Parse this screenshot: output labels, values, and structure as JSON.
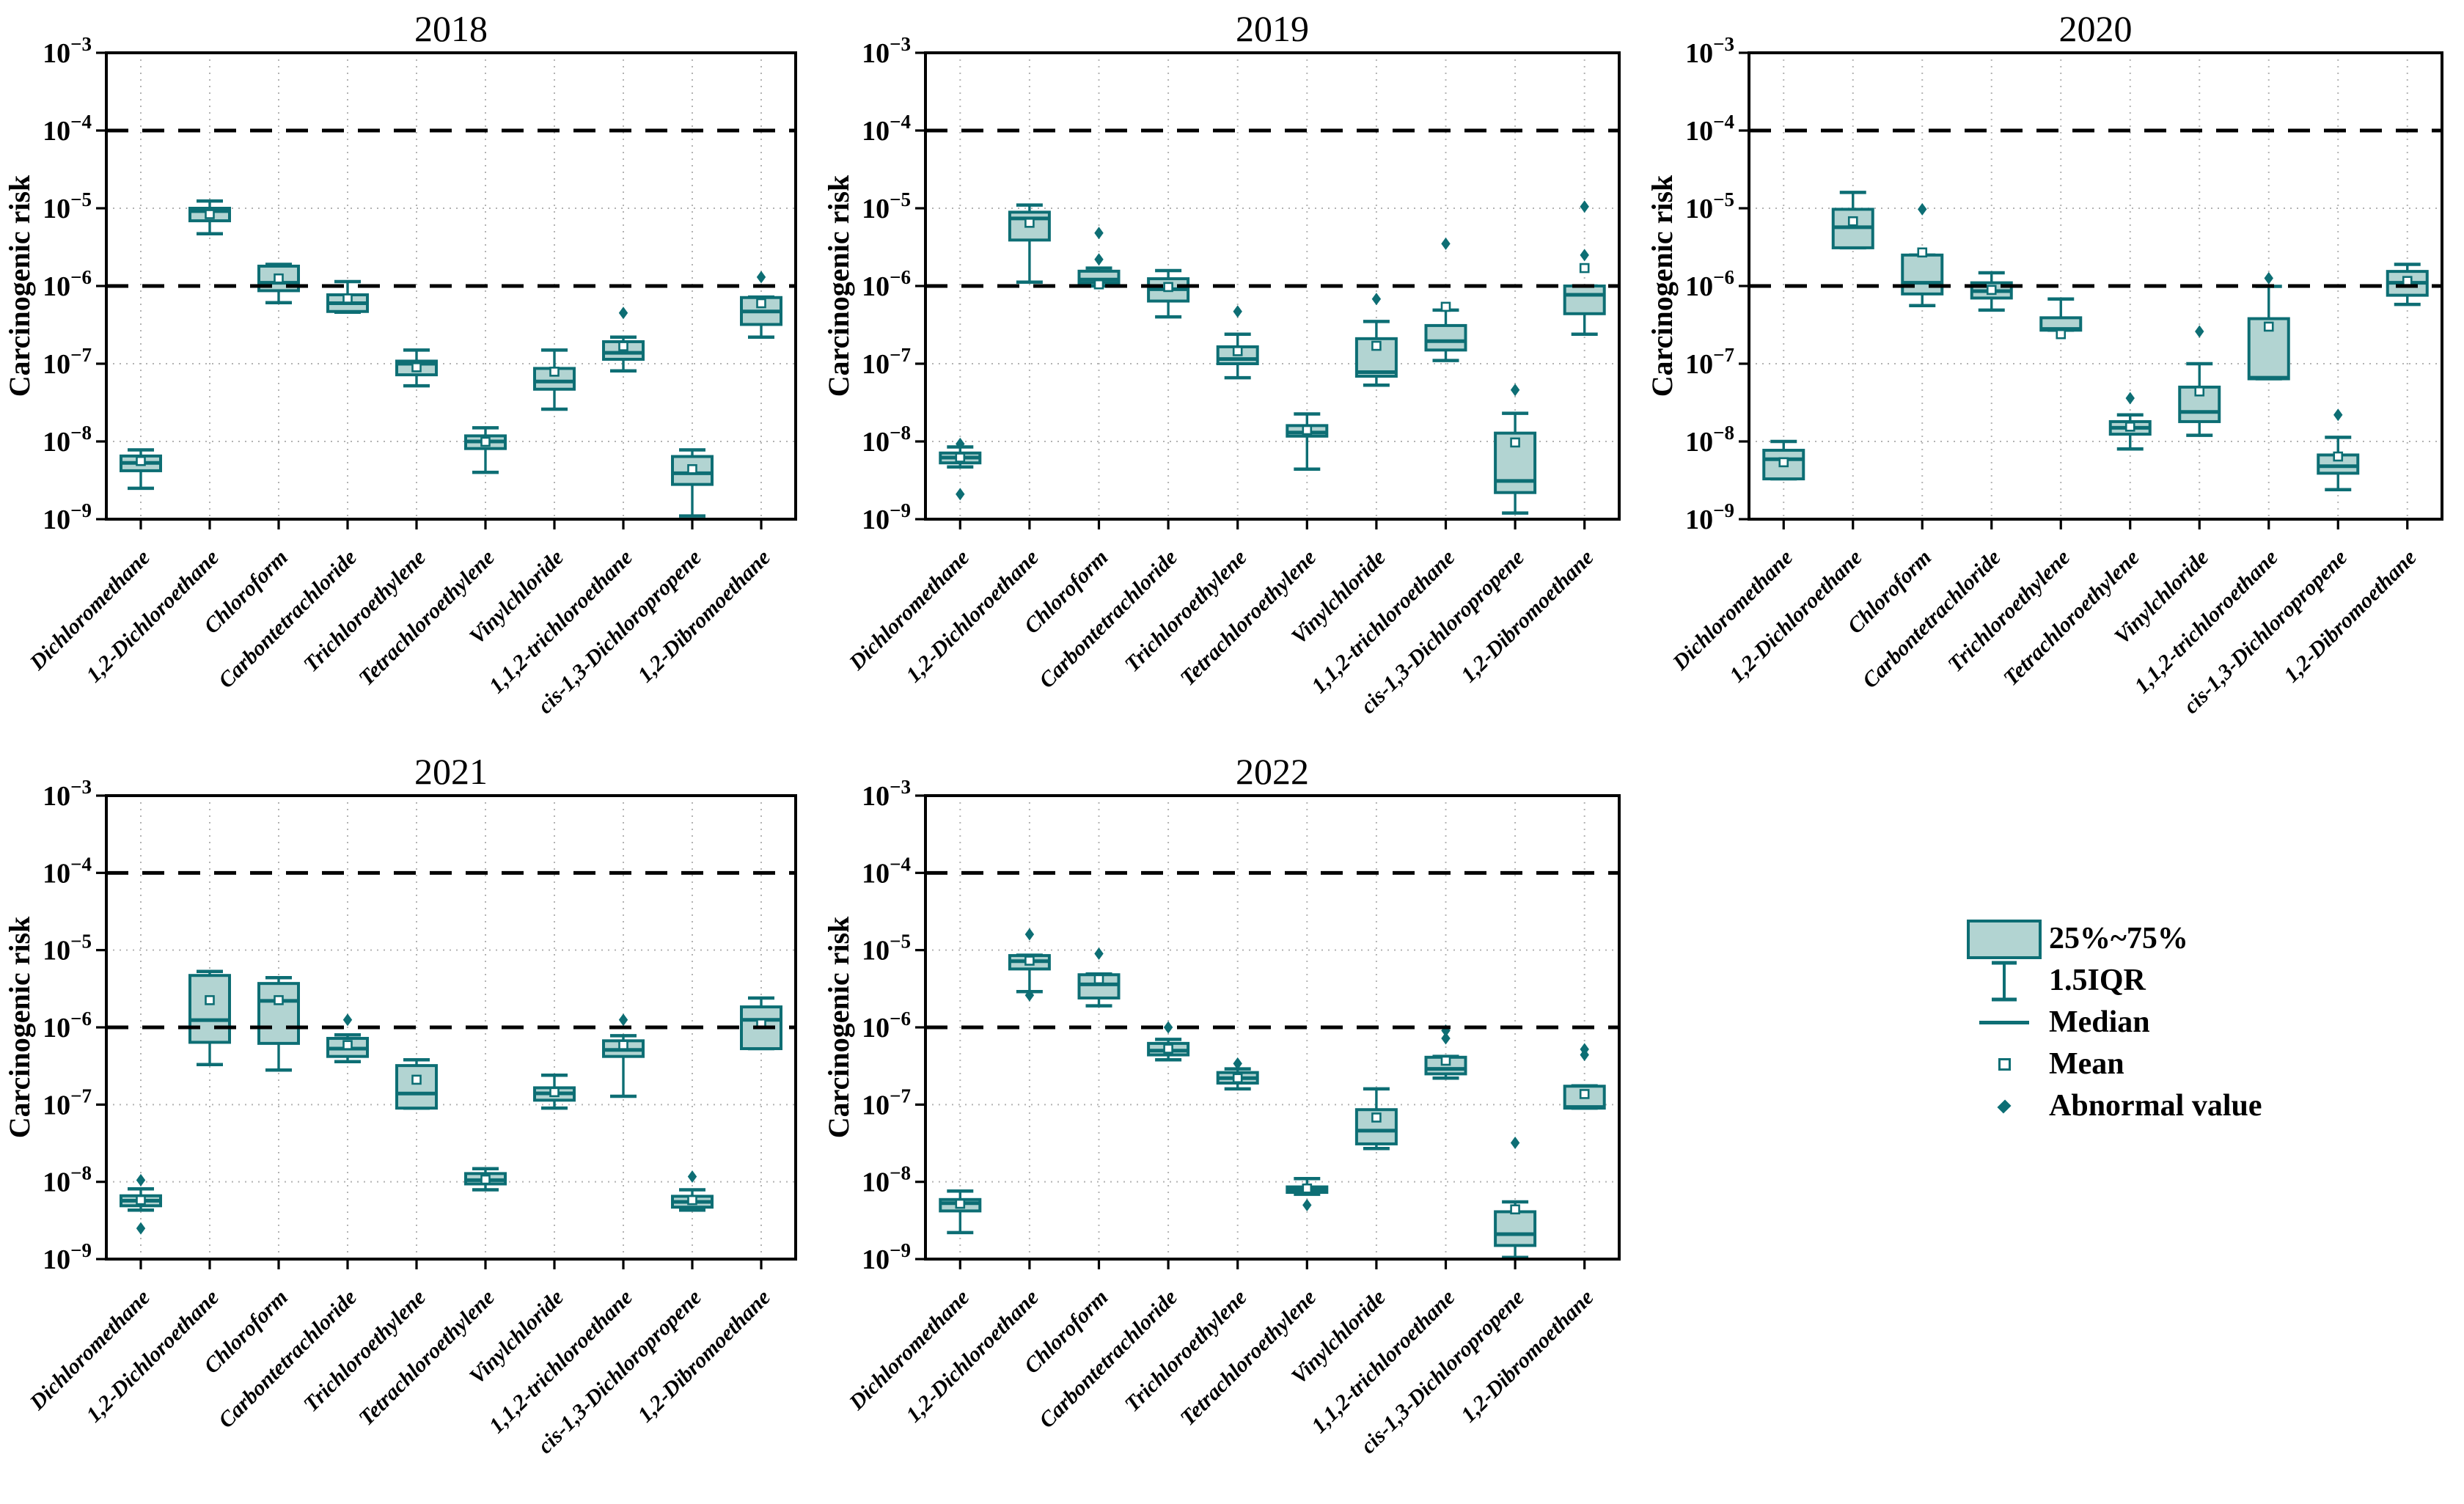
{
  "figure": {
    "background": "#ffffff",
    "ylabel": "Carcinogenic risk"
  },
  "colors": {
    "box_fill": "#b2d4d2",
    "box_stroke": "#0d6e74",
    "grid": "#b3b3b3",
    "axis": "#000000",
    "ref_line": "#000000"
  },
  "legend": {
    "items": [
      {
        "icon": "box-swatch-icon",
        "label": "25%~75%"
      },
      {
        "icon": "iqr-whisker-icon",
        "label": "1.5IQR"
      },
      {
        "icon": "median-line-icon",
        "label": "Median"
      },
      {
        "icon": "mean-square-icon",
        "label": "Mean"
      },
      {
        "icon": "abnormal-diamond-icon",
        "label": "Abnormal value"
      }
    ]
  },
  "chart_data": {
    "type": "box",
    "ylabel": "Carcinogenic risk",
    "y_scale": "log",
    "y_tick_exponents": [
      -3,
      -4,
      -5,
      -6,
      -7,
      -8,
      -9
    ],
    "ylim_exponents": [
      -9,
      -3
    ],
    "reference_line_values": [
      0.0001,
      1e-06
    ],
    "grid": "dotted-both-axes",
    "legend_position": "bottom-right-outside",
    "categories": [
      "Dichloromethane",
      "1,2-Dichloroethane",
      "Chloroform",
      "Carbontetrachloride",
      "Trichloroethylene",
      "Tetrachloroethylene",
      "Vinylchloride",
      "1,1,2-trichloroethane",
      "cis-1,3-Dichloropropene",
      "1,2-Dibromoethane"
    ],
    "panels": [
      {
        "title": "2018",
        "boxes": [
          {
            "lo": 2.5e-09,
            "q1": 4.2e-09,
            "med": 5.3e-09,
            "q3": 6.5e-09,
            "hi": 7.8e-09,
            "mean": 5.6e-09,
            "out": []
          },
          {
            "lo": 4.7e-06,
            "q1": 6.9e-06,
            "med": 9.2e-06,
            "q3": 1e-05,
            "hi": 1.24e-05,
            "mean": 8.4e-06,
            "out": []
          },
          {
            "lo": 6.1e-07,
            "q1": 8.7e-07,
            "med": 1.1e-06,
            "q3": 1.8e-06,
            "hi": 1.9e-06,
            "mean": 1.25e-06,
            "out": []
          },
          {
            "lo": 4.6e-07,
            "q1": 4.7e-07,
            "med": 6e-07,
            "q3": 7.7e-07,
            "hi": 1.14e-06,
            "mean": 6.9e-07,
            "out": []
          },
          {
            "lo": 5.2e-08,
            "q1": 7.2e-08,
            "med": 1e-07,
            "q3": 1.08e-07,
            "hi": 1.5e-07,
            "mean": 9e-08,
            "out": []
          },
          {
            "lo": 4e-09,
            "q1": 8.1e-09,
            "med": 1e-08,
            "q3": 1.18e-08,
            "hi": 1.5e-08,
            "mean": 9.9e-09,
            "out": []
          },
          {
            "lo": 2.6e-08,
            "q1": 4.7e-08,
            "med": 5.9e-08,
            "q3": 8.7e-08,
            "hi": 1.5e-07,
            "mean": 7.9e-08,
            "out": []
          },
          {
            "lo": 8.1e-08,
            "q1": 1.14e-07,
            "med": 1.38e-07,
            "q3": 1.92e-07,
            "hi": 2.2e-07,
            "mean": 1.68e-07,
            "out": [
              4.5e-07
            ]
          },
          {
            "lo": 1.1e-09,
            "q1": 2.8e-09,
            "med": 3.9e-09,
            "q3": 6.4e-09,
            "hi": 7.8e-09,
            "mean": 4.4e-09,
            "out": []
          },
          {
            "lo": 2.2e-07,
            "q1": 3.2e-07,
            "med": 4.7e-07,
            "q3": 7.1e-07,
            "hi": 7.2e-07,
            "mean": 6e-07,
            "out": [
              1.3e-06
            ]
          }
        ]
      },
      {
        "title": "2019",
        "boxes": [
          {
            "lo": 4.7e-09,
            "q1": 5.3e-09,
            "med": 6.2e-09,
            "q3": 7.1e-09,
            "hi": 8.5e-09,
            "mean": 6.2e-09,
            "out": [
              9.3e-09,
              2.1e-09
            ]
          },
          {
            "lo": 1.12e-06,
            "q1": 3.9e-06,
            "med": 7.4e-06,
            "q3": 8.9e-06,
            "hi": 1.1e-05,
            "mean": 6.5e-06,
            "out": []
          },
          {
            "lo": 1e-06,
            "q1": 1.1e-06,
            "med": 1.21e-06,
            "q3": 1.55e-06,
            "hi": 1.7e-06,
            "mean": 1.05e-06,
            "out": [
              2.2e-06,
              4.8e-06
            ]
          },
          {
            "lo": 4e-07,
            "q1": 6.4e-07,
            "med": 9.1e-07,
            "q3": 1.24e-06,
            "hi": 1.58e-06,
            "mean": 9.7e-07,
            "out": []
          },
          {
            "lo": 6.6e-08,
            "q1": 1e-07,
            "med": 1.15e-07,
            "q3": 1.65e-07,
            "hi": 2.4e-07,
            "mean": 1.45e-07,
            "out": [
              4.7e-07
            ]
          },
          {
            "lo": 4.4e-09,
            "q1": 1.17e-08,
            "med": 1.3e-08,
            "q3": 1.6e-08,
            "hi": 2.26e-08,
            "mean": 1.4e-08,
            "out": []
          },
          {
            "lo": 5.3e-08,
            "q1": 6.9e-08,
            "med": 7.8e-08,
            "q3": 2.1e-07,
            "hi": 3.5e-07,
            "mean": 1.7e-07,
            "out": [
              6.8e-07
            ]
          },
          {
            "lo": 1.1e-07,
            "q1": 1.5e-07,
            "med": 1.95e-07,
            "q3": 3.1e-07,
            "hi": 4.9e-07,
            "mean": 5.4e-07,
            "out": [
              3.5e-06
            ]
          },
          {
            "lo": 1.2e-09,
            "q1": 2.2e-09,
            "med": 3.1e-09,
            "q3": 1.28e-08,
            "hi": 2.3e-08,
            "mean": 9.7e-09,
            "out": [
              4.6e-08
            ]
          },
          {
            "lo": 2.4e-07,
            "q1": 4.4e-07,
            "med": 7.7e-07,
            "q3": 1e-06,
            "hi": 1e-06,
            "mean": 1.7e-06,
            "out": [
              2.5e-06,
              1.05e-05
            ]
          }
        ]
      },
      {
        "title": "2020",
        "boxes": [
          {
            "lo": 3.3e-09,
            "q1": 3.3e-09,
            "med": 5.9e-09,
            "q3": 7.7e-09,
            "hi": 1e-08,
            "mean": 5.4e-09,
            "out": []
          },
          {
            "lo": 3.1e-06,
            "q1": 3.1e-06,
            "med": 5.7e-06,
            "q3": 9.7e-06,
            "hi": 1.6e-05,
            "mean": 6.8e-06,
            "out": []
          },
          {
            "lo": 5.6e-07,
            "q1": 7.9e-07,
            "med": 1.1e-06,
            "q3": 2.5e-06,
            "hi": 2.5e-06,
            "mean": 2.7e-06,
            "out": [
              9.7e-06
            ]
          },
          {
            "lo": 4.9e-07,
            "q1": 7e-07,
            "med": 8.6e-07,
            "q3": 1.1e-06,
            "hi": 1.48e-06,
            "mean": 8.9e-07,
            "out": []
          },
          {
            "lo": 2.7e-07,
            "q1": 2.7e-07,
            "med": 2.8e-07,
            "q3": 3.9e-07,
            "hi": 6.8e-07,
            "mean": 2.4e-07,
            "out": []
          },
          {
            "lo": 8e-09,
            "q1": 1.24e-08,
            "med": 1.5e-08,
            "q3": 1.8e-08,
            "hi": 2.2e-08,
            "mean": 1.55e-08,
            "out": [
              3.6e-08
            ]
          },
          {
            "lo": 1.2e-08,
            "q1": 1.8e-08,
            "med": 2.4e-08,
            "q3": 5e-08,
            "hi": 1e-07,
            "mean": 4.4e-08,
            "out": [
              2.6e-07
            ]
          },
          {
            "lo": 6.4e-08,
            "q1": 6.4e-08,
            "med": 6.6e-08,
            "q3": 3.8e-07,
            "hi": 9.9e-07,
            "mean": 3e-07,
            "out": [
              1.26e-06
            ]
          },
          {
            "lo": 2.4e-09,
            "q1": 3.9e-09,
            "med": 4.8e-09,
            "q3": 6.7e-09,
            "hi": 1.13e-08,
            "mean": 6.4e-09,
            "out": [
              2.2e-08
            ]
          },
          {
            "lo": 5.8e-07,
            "q1": 7.6e-07,
            "med": 1.1e-06,
            "q3": 1.54e-06,
            "hi": 1.9e-06,
            "mean": 1.16e-06,
            "out": []
          }
        ]
      },
      {
        "title": "2021",
        "boxes": [
          {
            "lo": 4.3e-09,
            "q1": 4.9e-09,
            "med": 5.7e-09,
            "q3": 6.6e-09,
            "hi": 8.1e-09,
            "mean": 5.8e-09,
            "out": [
              1.05e-08,
              2.5e-09
            ]
          },
          {
            "lo": 3.3e-07,
            "q1": 6.4e-07,
            "med": 1.24e-06,
            "q3": 4.7e-06,
            "hi": 5.3e-06,
            "mean": 2.25e-06,
            "out": []
          },
          {
            "lo": 2.8e-07,
            "q1": 6.2e-07,
            "med": 2.2e-06,
            "q3": 3.7e-06,
            "hi": 4.4e-06,
            "mean": 2.25e-06,
            "out": []
          },
          {
            "lo": 3.6e-07,
            "q1": 4.2e-07,
            "med": 5.3e-07,
            "q3": 7.2e-07,
            "hi": 8e-07,
            "mean": 5.9e-07,
            "out": [
              1.25e-06
            ]
          },
          {
            "lo": 9e-08,
            "q1": 9e-08,
            "med": 1.39e-07,
            "q3": 3.2e-07,
            "hi": 3.8e-07,
            "mean": 2.1e-07,
            "out": []
          },
          {
            "lo": 7.9e-09,
            "q1": 9.4e-09,
            "med": 1.05e-08,
            "q3": 1.28e-08,
            "hi": 1.48e-08,
            "mean": 1.07e-08,
            "out": []
          },
          {
            "lo": 9e-08,
            "q1": 1.14e-07,
            "med": 1.4e-07,
            "q3": 1.65e-07,
            "hi": 2.4e-07,
            "mean": 1.45e-07,
            "out": []
          },
          {
            "lo": 1.28e-07,
            "q1": 4.2e-07,
            "med": 5.1e-07,
            "q3": 6.7e-07,
            "hi": 7.8e-07,
            "mean": 5.9e-07,
            "out": [
              1.25e-06
            ]
          },
          {
            "lo": 4.3e-09,
            "q1": 4.7e-09,
            "med": 5.5e-09,
            "q3": 6.5e-09,
            "hi": 7.9e-09,
            "mean": 5.8e-09,
            "out": [
              1.17e-08
            ]
          },
          {
            "lo": 5.3e-07,
            "q1": 5.3e-07,
            "med": 1.25e-06,
            "q3": 1.84e-06,
            "hi": 2.4e-06,
            "mean": 1.12e-06,
            "out": []
          }
        ]
      },
      {
        "title": "2022",
        "boxes": [
          {
            "lo": 2.2e-09,
            "q1": 4.2e-09,
            "med": 5.3e-09,
            "q3": 5.9e-09,
            "hi": 7.6e-09,
            "mean": 5.2e-09,
            "out": []
          },
          {
            "lo": 2.9e-06,
            "q1": 5.7e-06,
            "med": 7.2e-06,
            "q3": 8.5e-06,
            "hi": 8.6e-06,
            "mean": 7.3e-06,
            "out": [
              1.6e-05,
              2.6e-06
            ]
          },
          {
            "lo": 1.9e-06,
            "q1": 2.4e-06,
            "med": 3.6e-06,
            "q3": 4.8e-06,
            "hi": 4.9e-06,
            "mean": 4.2e-06,
            "out": [
              9e-06
            ]
          },
          {
            "lo": 3.8e-07,
            "q1": 4.4e-07,
            "med": 5e-07,
            "q3": 6.2e-07,
            "hi": 7e-07,
            "mean": 5.3e-07,
            "out": [
              1e-06
            ]
          },
          {
            "lo": 1.6e-07,
            "q1": 1.9e-07,
            "med": 2.2e-07,
            "q3": 2.6e-07,
            "hi": 2.9e-07,
            "mean": 2.2e-07,
            "out": [
              3.4e-07
            ]
          },
          {
            "lo": 6.9e-09,
            "q1": 7.3e-09,
            "med": 7.9e-09,
            "q3": 8.6e-09,
            "hi": 1.1e-08,
            "mean": 8.2e-09,
            "out": [
              5e-09
            ]
          },
          {
            "lo": 2.7e-08,
            "q1": 3.1e-08,
            "med": 4.6e-08,
            "q3": 8.6e-08,
            "hi": 1.6e-07,
            "mean": 6.8e-08,
            "out": []
          },
          {
            "lo": 2.2e-07,
            "q1": 2.5e-07,
            "med": 2.9e-07,
            "q3": 4.1e-07,
            "hi": 4.2e-07,
            "mean": 3.7e-07,
            "out": [
              7.2e-07,
              9.1e-07
            ]
          },
          {
            "lo": 1.05e-09,
            "q1": 1.5e-09,
            "med": 2.1e-09,
            "q3": 4.1e-09,
            "hi": 5.5e-09,
            "mean": 4.4e-09,
            "out": [
              3.2e-08
            ]
          },
          {
            "lo": 9e-08,
            "q1": 9e-08,
            "med": 9.3e-08,
            "q3": 1.73e-07,
            "hi": 1.75e-07,
            "mean": 1.37e-07,
            "out": [
              4.4e-07,
              5.2e-07
            ]
          }
        ]
      }
    ]
  }
}
